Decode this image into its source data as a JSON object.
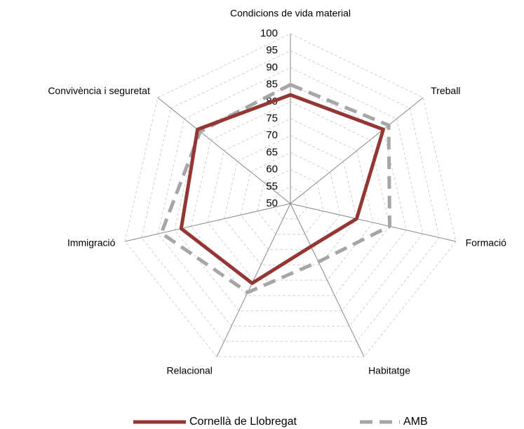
{
  "chart_data": {
    "type": "radar",
    "categories": [
      "Condicions de vida material",
      "Treball",
      "Formació",
      "Habitatge",
      "Relacional",
      "Immigració",
      "Convivència i seguretat"
    ],
    "series": [
      {
        "name": "Cornellà de Llobregat",
        "color": "#943634",
        "dashed": false,
        "values": [
          82,
          85,
          70,
          64,
          76,
          83,
          85
        ]
      },
      {
        "name": "AMB",
        "color": "#a6a6a6",
        "dashed": true,
        "values": [
          85,
          87,
          80,
          69,
          79,
          89,
          84
        ]
      }
    ],
    "rlim": [
      50,
      100
    ],
    "rticks": [
      50,
      55,
      60,
      65,
      70,
      75,
      80,
      85,
      90,
      95,
      100
    ],
    "grid": true,
    "legend": "bottom"
  }
}
